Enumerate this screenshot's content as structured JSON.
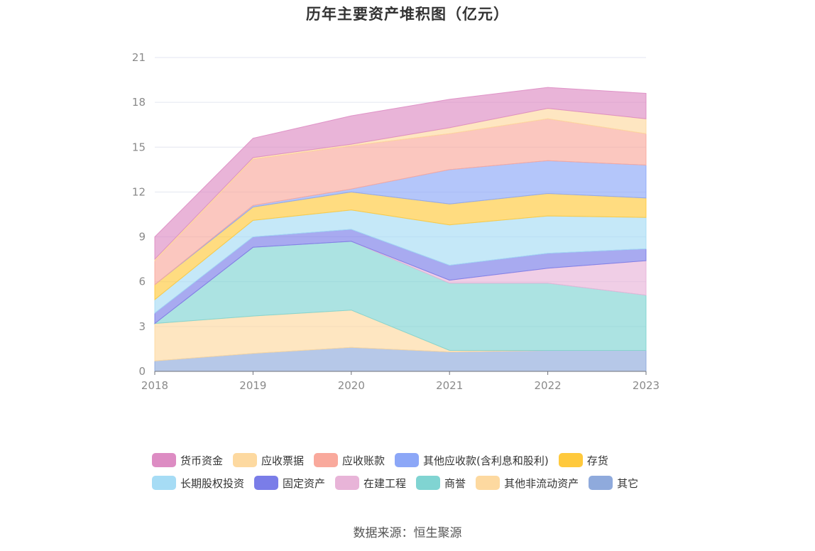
{
  "title": "历年主要资产堆积图（亿元）",
  "source": "数据来源：恒生聚源",
  "chart_data": {
    "type": "area",
    "stacked": true,
    "categories": [
      "2018",
      "2019",
      "2020",
      "2021",
      "2022",
      "2023"
    ],
    "ylim": [
      0,
      21
    ],
    "yticks": [
      "0",
      "3",
      "6",
      "9",
      "12",
      "15",
      "18",
      "21"
    ],
    "legend_position": "bottom",
    "grid": true,
    "series": [
      {
        "name": "其它",
        "color": "#8faadc",
        "values": [
          0.7,
          1.2,
          1.6,
          1.3,
          1.4,
          1.4
        ]
      },
      {
        "name": "其他非流动资产",
        "color": "#fdd9a0",
        "values": [
          2.5,
          2.5,
          2.5,
          0.1,
          0.0,
          0.0
        ]
      },
      {
        "name": "商誉",
        "color": "#80d4d2",
        "values": [
          0.0,
          4.6,
          4.6,
          4.5,
          4.5,
          3.7
        ]
      },
      {
        "name": "在建工程",
        "color": "#e8b4d8",
        "values": [
          0.0,
          0.0,
          0.0,
          0.2,
          1.0,
          2.3
        ]
      },
      {
        "name": "固定资产",
        "color": "#7a7de8",
        "values": [
          0.7,
          0.7,
          0.8,
          1.0,
          1.0,
          0.8
        ]
      },
      {
        "name": "长期股权投资",
        "color": "#a6dcf5",
        "values": [
          0.9,
          1.1,
          1.3,
          2.7,
          2.5,
          2.1
        ]
      },
      {
        "name": "存货",
        "color": "#ffc93c",
        "values": [
          1.0,
          0.9,
          1.2,
          1.4,
          1.5,
          1.3
        ]
      },
      {
        "name": "其他应收款(含利息和股利)",
        "color": "#8ca7f7",
        "values": [
          0.0,
          0.1,
          0.2,
          2.3,
          2.2,
          2.2
        ]
      },
      {
        "name": "应收账款",
        "color": "#f9a99c",
        "values": [
          1.6,
          3.1,
          2.9,
          2.4,
          2.8,
          2.1
        ]
      },
      {
        "name": "应收票据",
        "color": "#fdd9a0",
        "values": [
          0.1,
          0.1,
          0.1,
          0.4,
          0.7,
          1.0
        ]
      },
      {
        "name": "货币资金",
        "color": "#dd8cc3",
        "values": [
          1.5,
          1.3,
          1.9,
          1.9,
          1.4,
          1.7
        ]
      }
    ]
  }
}
